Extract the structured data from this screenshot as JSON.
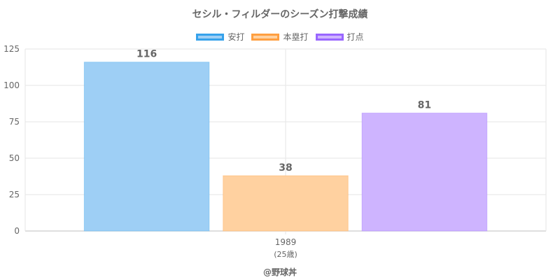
{
  "chart_data": {
    "type": "bar",
    "title": "セシル・フィルダーのシーズン打撃成績",
    "categories": [
      "1989"
    ],
    "category_sublabels": [
      "(25歳)"
    ],
    "series": [
      {
        "name": "安打",
        "values": [
          116
        ],
        "color": "#9ecff5",
        "border": "#36a2eb"
      },
      {
        "name": "本塁打",
        "values": [
          38
        ],
        "color": "#ffd1a0",
        "border": "#ff9f40"
      },
      {
        "name": "打点",
        "values": [
          81
        ],
        "color": "#ceb4ff",
        "border": "#9966ff"
      }
    ],
    "ylim": [
      0,
      125
    ],
    "yticks": [
      0,
      25,
      50,
      75,
      100,
      125
    ],
    "grid": true,
    "legend_position": "top",
    "xlabel": "",
    "ylabel": ""
  },
  "credit": "@野球丼"
}
